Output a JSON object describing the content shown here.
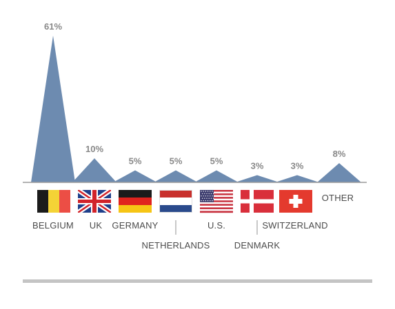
{
  "chart_data": {
    "type": "area",
    "unit": "%",
    "categories": [
      "BELGIUM",
      "UK",
      "GERMANY",
      "NETHERLANDS",
      "U.S.",
      "DENMARK",
      "SWITZERLAND",
      "OTHER"
    ],
    "values": [
      61,
      10,
      5,
      5,
      5,
      3,
      3,
      8
    ],
    "value_labels": [
      "61%",
      "10%",
      "5%",
      "5%",
      "5%",
      "3%",
      "3%",
      "8%"
    ],
    "flags": [
      "belgium-flag",
      "uk-flag",
      "germany-flag",
      "netherlands-flag",
      "us-flag",
      "denmark-flag",
      "switzerland-flag",
      ""
    ],
    "grid": false,
    "legend": "none"
  },
  "colors": {
    "peak": "#6d8bb0",
    "baseline": "#9a9a9a",
    "label": "#4a4a4a",
    "value_label": "#888888",
    "rule": "#c4c4c4"
  }
}
